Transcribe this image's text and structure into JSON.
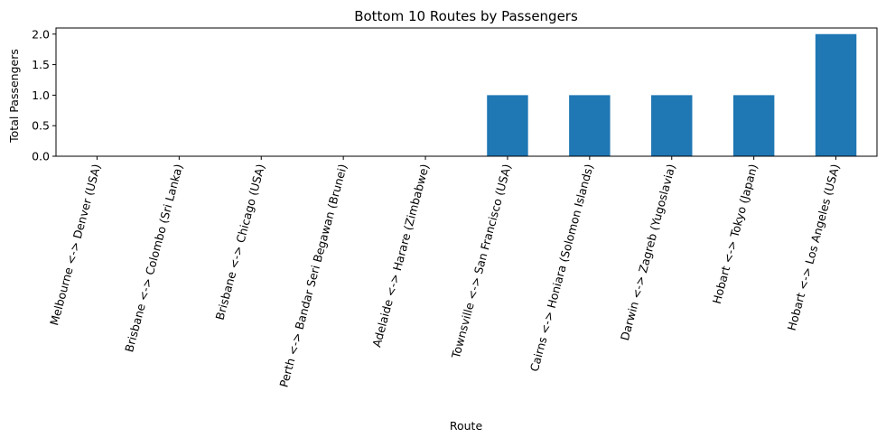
{
  "chart_data": {
    "type": "bar",
    "title": "Bottom 10 Routes by Passengers",
    "xlabel": "Route",
    "ylabel": "Total Passengers",
    "categories": [
      "Melbourne <-> Denver (USA)",
      "Brisbane <-> Colombo (Sri Lanka)",
      "Brisbane <-> Chicago (USA)",
      "Perth <-> Bandar Seri Begawan (Brunei)",
      "Adelaide <-> Harare (Zimbabwe)",
      "Townsville <-> San Francisco (USA)",
      "Cairns <-> Honiara (Solomon Islands)",
      "Darwin <-> Zagreb (Yugoslavia)",
      "Hobart <-> Tokyo (Japan)",
      "Hobart <-> Los Angeles (USA)"
    ],
    "values": [
      0,
      0,
      0,
      0,
      0,
      1,
      1,
      1,
      1,
      2
    ],
    "ylim": [
      0,
      2.1
    ],
    "yticks": [
      "0.0",
      "0.5",
      "1.0",
      "1.5",
      "2.0"
    ],
    "grid": false,
    "bar_color": "#1f77b4"
  }
}
